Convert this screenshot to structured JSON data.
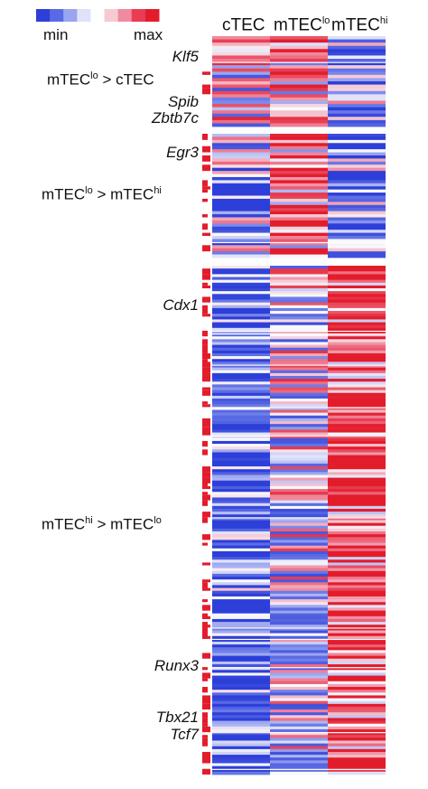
{
  "legend": {
    "min_label": "min",
    "max_label": "max",
    "colors": [
      "#2d3fd9",
      "#5a6ae6",
      "#9aa4f0",
      "#dfe2f8",
      "#ffffff",
      "#f7c9d3",
      "#f08aa0",
      "#ea3d55",
      "#e31c2c"
    ]
  },
  "columns": [
    {
      "base": "cTEC",
      "sup": ""
    },
    {
      "base": "mTEC",
      "sup": "lo"
    },
    {
      "base": "mTEC",
      "sup": "hi"
    }
  ],
  "groups": [
    {
      "left": "mTEC",
      "left_sup": "lo",
      "op": ">",
      "right": "cTEC",
      "right_sup": ""
    },
    {
      "left": "mTEC",
      "left_sup": "lo",
      "op": ">",
      "right": "mTEC",
      "right_sup": "hi"
    },
    {
      "left": "mTEC",
      "left_sup": "hi",
      "op": ">",
      "right": "mTEC",
      "right_sup": "lo"
    }
  ],
  "genes": [
    "Klf5",
    "Spib",
    "Zbtb7c",
    "Egr3",
    "Cdx1",
    "Runx3",
    "Tbx21",
    "Tcf7"
  ],
  "chart_data": {
    "type": "heatmap",
    "columns": [
      "cTEC",
      "mTEClo",
      "mTEChi"
    ],
    "scale": [
      "min",
      "max"
    ],
    "blocks": [
      {
        "group": "mTEClo > cTEC",
        "labeled_genes": [
          "Klf5",
          "Spib",
          "Zbtb7c"
        ],
        "rows": 28
      },
      {
        "group": "mTEClo > mTEChi",
        "labeled_genes": [
          "Egr3"
        ],
        "rows": 40
      },
      {
        "group": "mTEChi > mTEClo",
        "labeled_genes": [
          "Cdx1",
          "Runx3",
          "Tbx21",
          "Tcf7"
        ],
        "rows": 180
      }
    ]
  }
}
